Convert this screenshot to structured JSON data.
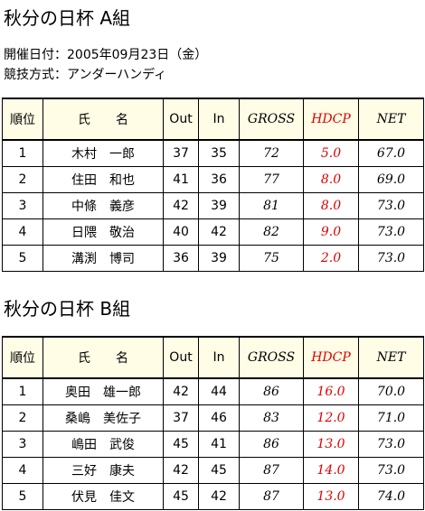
{
  "sections": [
    {
      "title": "秋分の日杯 A組",
      "info": [
        "開催日付：2005年09月23日（金）",
        "競技方式：アンダーハンディ"
      ],
      "table": {
        "columns": [
          "順位",
          "氏　　名",
          "Out",
          "In",
          "GROSS",
          "HDCP",
          "NET"
        ],
        "rows": [
          [
            "1",
            "木村　一郎",
            "37",
            "35",
            "72",
            "5.0",
            "67.0"
          ],
          [
            "2",
            "住田　和也",
            "41",
            "36",
            "77",
            "8.0",
            "69.0"
          ],
          [
            "3",
            "中條　義彦",
            "42",
            "39",
            "81",
            "8.0",
            "73.0"
          ],
          [
            "4",
            "日隈　敬治",
            "40",
            "42",
            "82",
            "9.0",
            "73.0"
          ],
          [
            "5",
            "溝渕　博司",
            "36",
            "39",
            "75",
            "2.0",
            "73.0"
          ]
        ]
      }
    },
    {
      "title": "秋分の日杯 B組",
      "table": {
        "columns": [
          "順位",
          "氏　　名",
          "Out",
          "In",
          "GROSS",
          "HDCP",
          "NET"
        ],
        "rows": [
          [
            "1",
            "奥田　雄一郎",
            "42",
            "44",
            "86",
            "16.0",
            "70.0"
          ],
          [
            "2",
            "桑嶋　美佐子",
            "37",
            "46",
            "83",
            "12.0",
            "71.0"
          ],
          [
            "3",
            "嶋田　武俊",
            "45",
            "41",
            "86",
            "13.0",
            "73.0"
          ],
          [
            "4",
            "三好　康夫",
            "42",
            "45",
            "87",
            "14.0",
            "73.0"
          ],
          [
            "5",
            "伏見　佳文",
            "45",
            "42",
            "87",
            "13.0",
            "74.0"
          ]
        ]
      }
    }
  ]
}
